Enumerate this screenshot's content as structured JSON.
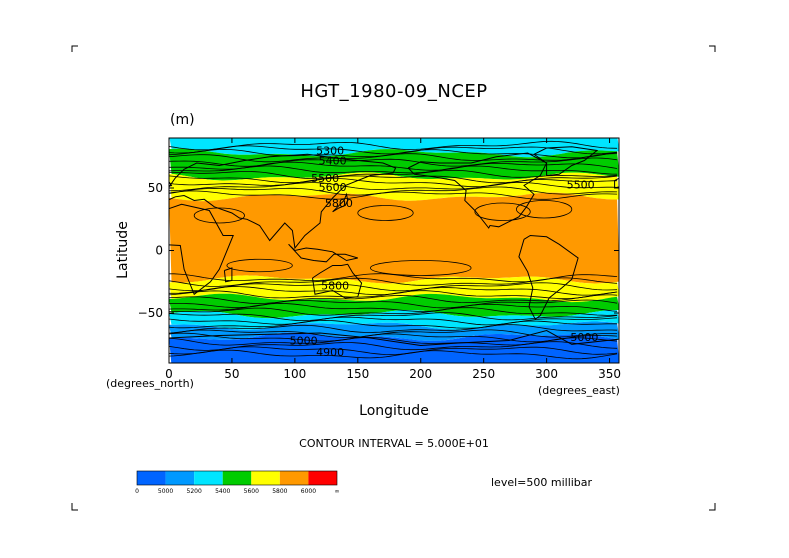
{
  "chart_data": {
    "type": "heatmap",
    "title": "HGT_1980-09_NCEP",
    "subtitle": "(m)",
    "xlabel": "Longitude",
    "ylabel": "Latitude",
    "x_units": "(degrees_east)",
    "y_units": "(degrees_north)",
    "xlim": [
      0,
      357.5
    ],
    "ylim": [
      -90,
      90
    ],
    "x_ticks": [
      0,
      50,
      100,
      150,
      200,
      250,
      300,
      350
    ],
    "y_ticks": [
      50,
      0,
      -50
    ],
    "y_tick_labels": [
      "50",
      "0",
      "−50"
    ],
    "contour_interval_text": "CONTOUR INTERVAL = 5.000E+01",
    "level_text": "level=500 millibar",
    "colorbar": {
      "colors": [
        "#0064ff",
        "#0099ff",
        "#00e5ff",
        "#00cc00",
        "#ffff00",
        "#ff9900",
        "#ff0000"
      ],
      "labels": [
        "0",
        "5000",
        "5200",
        "5400",
        "5600",
        "5800",
        "6000",
        "∞"
      ]
    },
    "contour_labels": [
      {
        "text": "5300",
        "lon": 128,
        "lat": 80
      },
      {
        "text": "5400",
        "lon": 130,
        "lat": 72
      },
      {
        "text": "5500",
        "lon": 124,
        "lat": 58
      },
      {
        "text": "5600",
        "lon": 130,
        "lat": 51
      },
      {
        "text": "5800",
        "lon": 135,
        "lat": 38
      },
      {
        "text": "5800",
        "lon": 132,
        "lat": -28
      },
      {
        "text": "5000",
        "lon": 107,
        "lat": -72
      },
      {
        "text": "4900",
        "lon": 128,
        "lat": -81
      },
      {
        "text": "5000",
        "lon": 330,
        "lat": -69
      },
      {
        "text": "5500",
        "lon": 327,
        "lat": 53
      }
    ],
    "bands": [
      {
        "north": 90,
        "south": 78,
        "fill": "#00e5ff"
      },
      {
        "north": 78,
        "south": 59,
        "fill": "#00cc00"
      },
      {
        "north": 59,
        "south": 43,
        "fill": "#ffff00"
      },
      {
        "north": 43,
        "south": -23,
        "fill": "#ff9900"
      },
      {
        "north": -23,
        "south": -38,
        "fill": "#ffff00"
      },
      {
        "north": -38,
        "south": -51,
        "fill": "#00cc00"
      },
      {
        "north": -51,
        "south": -60,
        "fill": "#00e5ff"
      },
      {
        "north": -60,
        "south": -69,
        "fill": "#0099ff"
      },
      {
        "north": -69,
        "south": -90,
        "fill": "#0064ff"
      }
    ]
  }
}
